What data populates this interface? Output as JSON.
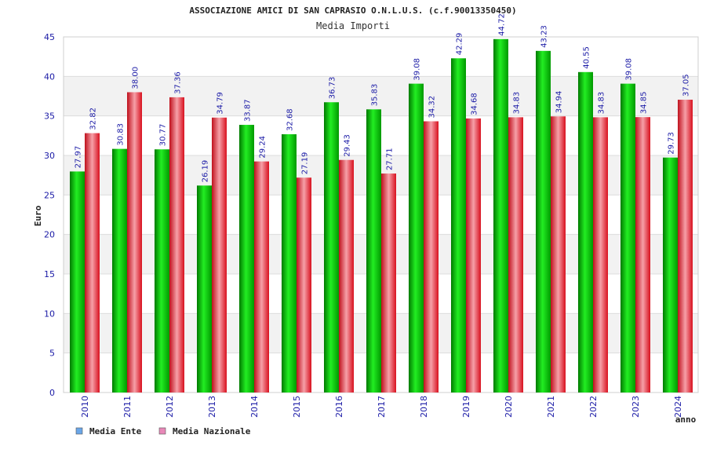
{
  "chart_data": {
    "type": "bar",
    "title": "ASSOCIAZIONE AMICI DI SAN CAPRASIO O.N.L.U.S. (c.f.90013350450)",
    "subtitle": "Media Importi",
    "xlabel": "anno",
    "ylabel": "Euro",
    "ylim": [
      0,
      45
    ],
    "yticks": [
      0,
      5,
      10,
      15,
      20,
      25,
      30,
      35,
      40,
      45
    ],
    "grid": true,
    "legend_position": "bottom-left",
    "categories": [
      "2010",
      "2011",
      "2012",
      "2013",
      "2014",
      "2015",
      "2016",
      "2017",
      "2018",
      "2019",
      "2020",
      "2021",
      "2022",
      "2023",
      "2024"
    ],
    "series": [
      {
        "name": "Media Ente",
        "color": "#00bb00",
        "legend_color": "#6aa6e8",
        "values": [
          27.97,
          30.83,
          30.77,
          26.19,
          33.87,
          32.68,
          36.73,
          35.83,
          39.08,
          42.29,
          44.72,
          43.23,
          40.55,
          39.08,
          29.73
        ],
        "labels": [
          "27.97",
          "30.83",
          "30.77",
          "26.19",
          "33.87",
          "32.68",
          "36.73",
          "35.83",
          "39.08",
          "42.29",
          "44.72",
          "43.23",
          "40.55",
          "39.08",
          "29.73"
        ]
      },
      {
        "name": "Media Nazionale",
        "color": "#e8202e",
        "legend_color": "#e888b8",
        "values": [
          32.82,
          38.0,
          37.36,
          34.79,
          29.24,
          27.19,
          29.43,
          27.71,
          34.32,
          34.68,
          34.83,
          34.94,
          34.83,
          34.85,
          37.05
        ],
        "labels": [
          "32.82",
          "38.00",
          "37.36",
          "34.79",
          "29.24",
          "27.19",
          "29.43",
          "27.71",
          "34.32",
          "34.68",
          "34.83",
          "34.94",
          "34.83",
          "34.85",
          "37.05"
        ]
      }
    ]
  }
}
